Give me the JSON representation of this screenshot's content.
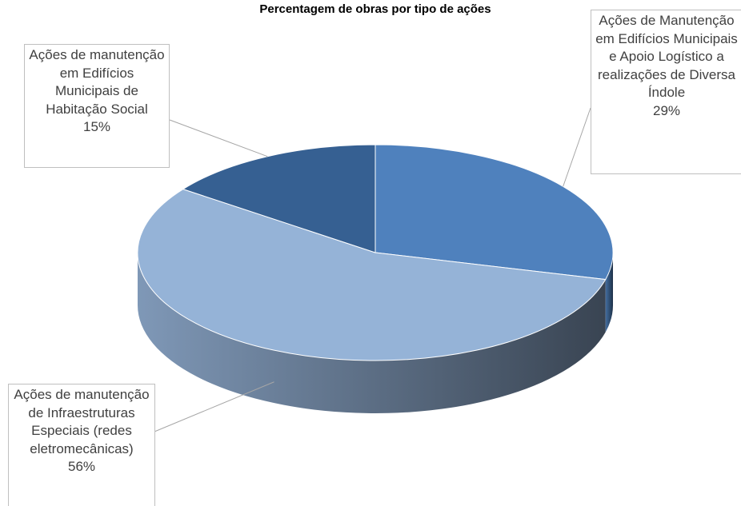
{
  "chart_data": {
    "type": "pie3d",
    "title": "Percentagem de obras por tipo de ações",
    "categories": [
      "Ações de Manutenção em Edifícios Municipais e Apoio Logístico a realizações de Diversa Índole",
      "Ações de manutenção de Infraestruturas Especiais (redes eletromecânicas)",
      "Ações de manutenção em Edifícios Municipais de Habitação Social"
    ],
    "values": [
      29,
      56,
      15
    ],
    "value_labels": [
      "29%",
      "56%",
      "15%"
    ],
    "colors": [
      "#4f81bd",
      "#95b3d7",
      "#366092"
    ]
  }
}
